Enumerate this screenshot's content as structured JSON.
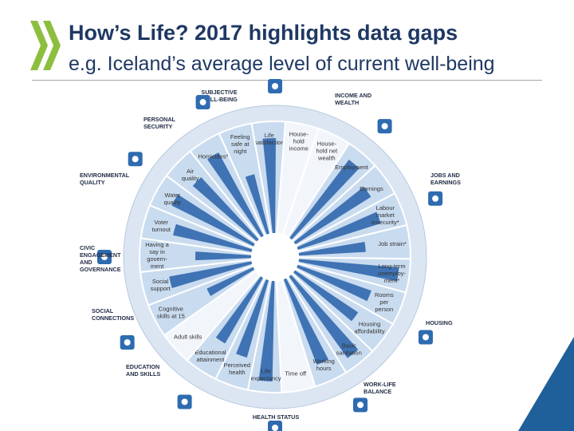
{
  "slide": {
    "title": "How’s Life? 2017 highlights data gaps",
    "subtitle": "e.g. Iceland’s average level of current well-being"
  },
  "colors": {
    "title": "#1f3864",
    "bar": "#3f73b4",
    "wedge": "#c9dbef",
    "wedge_empty": "#f2f6fb",
    "ring": "#dce6f2",
    "badge": "#2e6bb0",
    "logo": "#8cbf3f",
    "corner": "#1f5f9a"
  },
  "dimensions": [
    {
      "name": "subjective-well-being",
      "label": [
        "SUBJECTIVE",
        "WELL-BEING"
      ],
      "icon": "heart-icon"
    },
    {
      "name": "income-and-wealth",
      "label": [
        "INCOME AND",
        "WEALTH"
      ],
      "icon": "money-icon"
    },
    {
      "name": "jobs-and-earnings",
      "label": [
        "JOBS AND",
        "EARNINGS"
      ],
      "icon": "briefcase-icon"
    },
    {
      "name": "housing",
      "label": [
        "HOUSING"
      ],
      "icon": "house-icon"
    },
    {
      "name": "work-life-balance",
      "label": [
        "WORK-LIFE",
        "BALANCE"
      ],
      "icon": "scales-icon"
    },
    {
      "name": "health-status",
      "label": [
        "HEALTH STATUS"
      ],
      "icon": "cross-icon"
    },
    {
      "name": "education-and-skills",
      "label": [
        "EDUCATION",
        "AND SKILLS"
      ],
      "icon": "book-icon"
    },
    {
      "name": "social-connections",
      "label": [
        "SOCIAL",
        "CONNECTIONS"
      ],
      "icon": "people-icon"
    },
    {
      "name": "civic-engagement-and-governance",
      "label": [
        "CIVIC",
        "ENGAGEMENT",
        "AND",
        "GOVERNANCE"
      ],
      "icon": "envelope-icon"
    },
    {
      "name": "environmental-quality",
      "label": [
        "ENVIRONMENTAL",
        "QUALITY"
      ],
      "icon": "tree-icon"
    },
    {
      "name": "personal-security",
      "label": [
        "PERSONAL",
        "SECURITY"
      ],
      "icon": "runner-icon"
    }
  ],
  "indicators": [
    {
      "label": [
        "Life",
        "satisfaction"
      ],
      "value": 0.85,
      "available": true
    },
    {
      "label": [
        "House-",
        "hold",
        "income"
      ],
      "value": 0,
      "available": false
    },
    {
      "label": [
        "House-",
        "hold net",
        "wealth"
      ],
      "value": 0,
      "available": false
    },
    {
      "label": [
        "Employment"
      ],
      "value": 0.88,
      "available": true
    },
    {
      "label": [
        "Earnings"
      ],
      "value": 0.8,
      "available": true
    },
    {
      "label": [
        "Labour",
        "market",
        "insecurity*"
      ],
      "value": 0.78,
      "available": true
    },
    {
      "label": [
        "Job strain*"
      ],
      "value": 0.6,
      "available": true
    },
    {
      "label": [
        "Long-term",
        "unemploy-",
        "ment*"
      ],
      "value": 0.9,
      "available": true
    },
    {
      "label": [
        "Rooms",
        "per",
        "person"
      ],
      "value": 0.7,
      "available": true
    },
    {
      "label": [
        "Housing",
        "affordability"
      ],
      "value": 0.68,
      "available": true
    },
    {
      "label": [
        "Basic",
        "sanitation"
      ],
      "value": 0.9,
      "available": true
    },
    {
      "label": [
        "Working",
        "hours"
      ],
      "value": 0.82,
      "available": true
    },
    {
      "label": [
        "Time off"
      ],
      "value": 0,
      "available": false
    },
    {
      "label": [
        "Life",
        "expectancy"
      ],
      "value": 0.9,
      "available": true
    },
    {
      "label": [
        "Perceived",
        "health"
      ],
      "value": 0.72,
      "available": true
    },
    {
      "label": [
        "Educational",
        "attainment"
      ],
      "value": 0.68,
      "available": true
    },
    {
      "label": [
        "Adult skills"
      ],
      "value": 0,
      "available": false
    },
    {
      "label": [
        "Cognitive",
        "skills at 15"
      ],
      "value": 0.46,
      "available": true
    },
    {
      "label": [
        "Social",
        "support"
      ],
      "value": 0.75,
      "available": true
    },
    {
      "label": [
        "Having a",
        "say in",
        "govern-",
        "ment"
      ],
      "value": 0.5,
      "available": true
    },
    {
      "label": [
        "Voter",
        "turnout"
      ],
      "value": 0.72,
      "available": true
    },
    {
      "label": [
        "Water",
        "quality"
      ],
      "value": 0.82,
      "available": true
    },
    {
      "label": [
        "Air",
        "quality"
      ],
      "value": 0.76,
      "available": true
    },
    {
      "label": [
        "Homicides*"
      ],
      "value": 0.85,
      "available": true
    },
    {
      "label": [
        "Feeling",
        "safe at",
        "night"
      ],
      "value": 0.55,
      "available": true
    }
  ]
}
